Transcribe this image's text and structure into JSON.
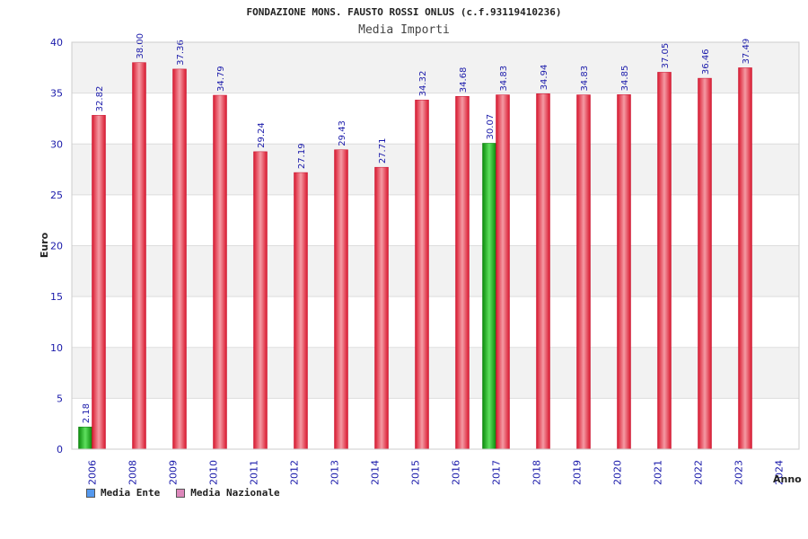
{
  "colors": {
    "ente": "#22aa22",
    "nazionale": "#e8283c",
    "swatch_ente": "#5599ee",
    "swatch_nazionale": "#dd88bb",
    "band": "#f2f2f2",
    "grid": "#dddddd"
  },
  "chart_data": {
    "type": "bar",
    "title": "FONDAZIONE MONS. FAUSTO ROSSI ONLUS (c.f.93119410236)",
    "subtitle": "Media Importi",
    "xlabel": "Anno",
    "ylabel": "Euro",
    "ylim": [
      0,
      40
    ],
    "yticks": [
      "0",
      "5",
      "10",
      "15",
      "20",
      "25",
      "30",
      "35",
      "40"
    ],
    "grid": true,
    "legend_position": "bottom-left",
    "categories": [
      "2006",
      "2008",
      "2009",
      "2010",
      "2011",
      "2012",
      "2013",
      "2014",
      "2015",
      "2016",
      "2017",
      "2018",
      "2019",
      "2020",
      "2021",
      "2022",
      "2023",
      "2024"
    ],
    "series": [
      {
        "name": "Media Ente",
        "values": [
          2.18,
          null,
          null,
          null,
          null,
          null,
          null,
          null,
          null,
          null,
          30.07,
          null,
          null,
          null,
          null,
          null,
          null,
          null
        ],
        "labels": [
          "2.18",
          null,
          null,
          null,
          null,
          null,
          null,
          null,
          null,
          null,
          "30.07",
          null,
          null,
          null,
          null,
          null,
          null,
          null
        ]
      },
      {
        "name": "Media Nazionale",
        "values": [
          32.82,
          38.0,
          37.36,
          34.79,
          29.24,
          27.19,
          29.43,
          27.71,
          34.32,
          34.68,
          34.83,
          34.94,
          34.83,
          34.85,
          37.05,
          36.46,
          37.49,
          null
        ],
        "labels": [
          "32.82",
          "38.00",
          "37.36",
          "34.79",
          "29.24",
          "27.19",
          "29.43",
          "27.71",
          "34.32",
          "34.68",
          "34.83",
          "34.94",
          "34.83",
          "34.85",
          "37.05",
          "36.46",
          "37.49",
          null
        ]
      }
    ]
  }
}
